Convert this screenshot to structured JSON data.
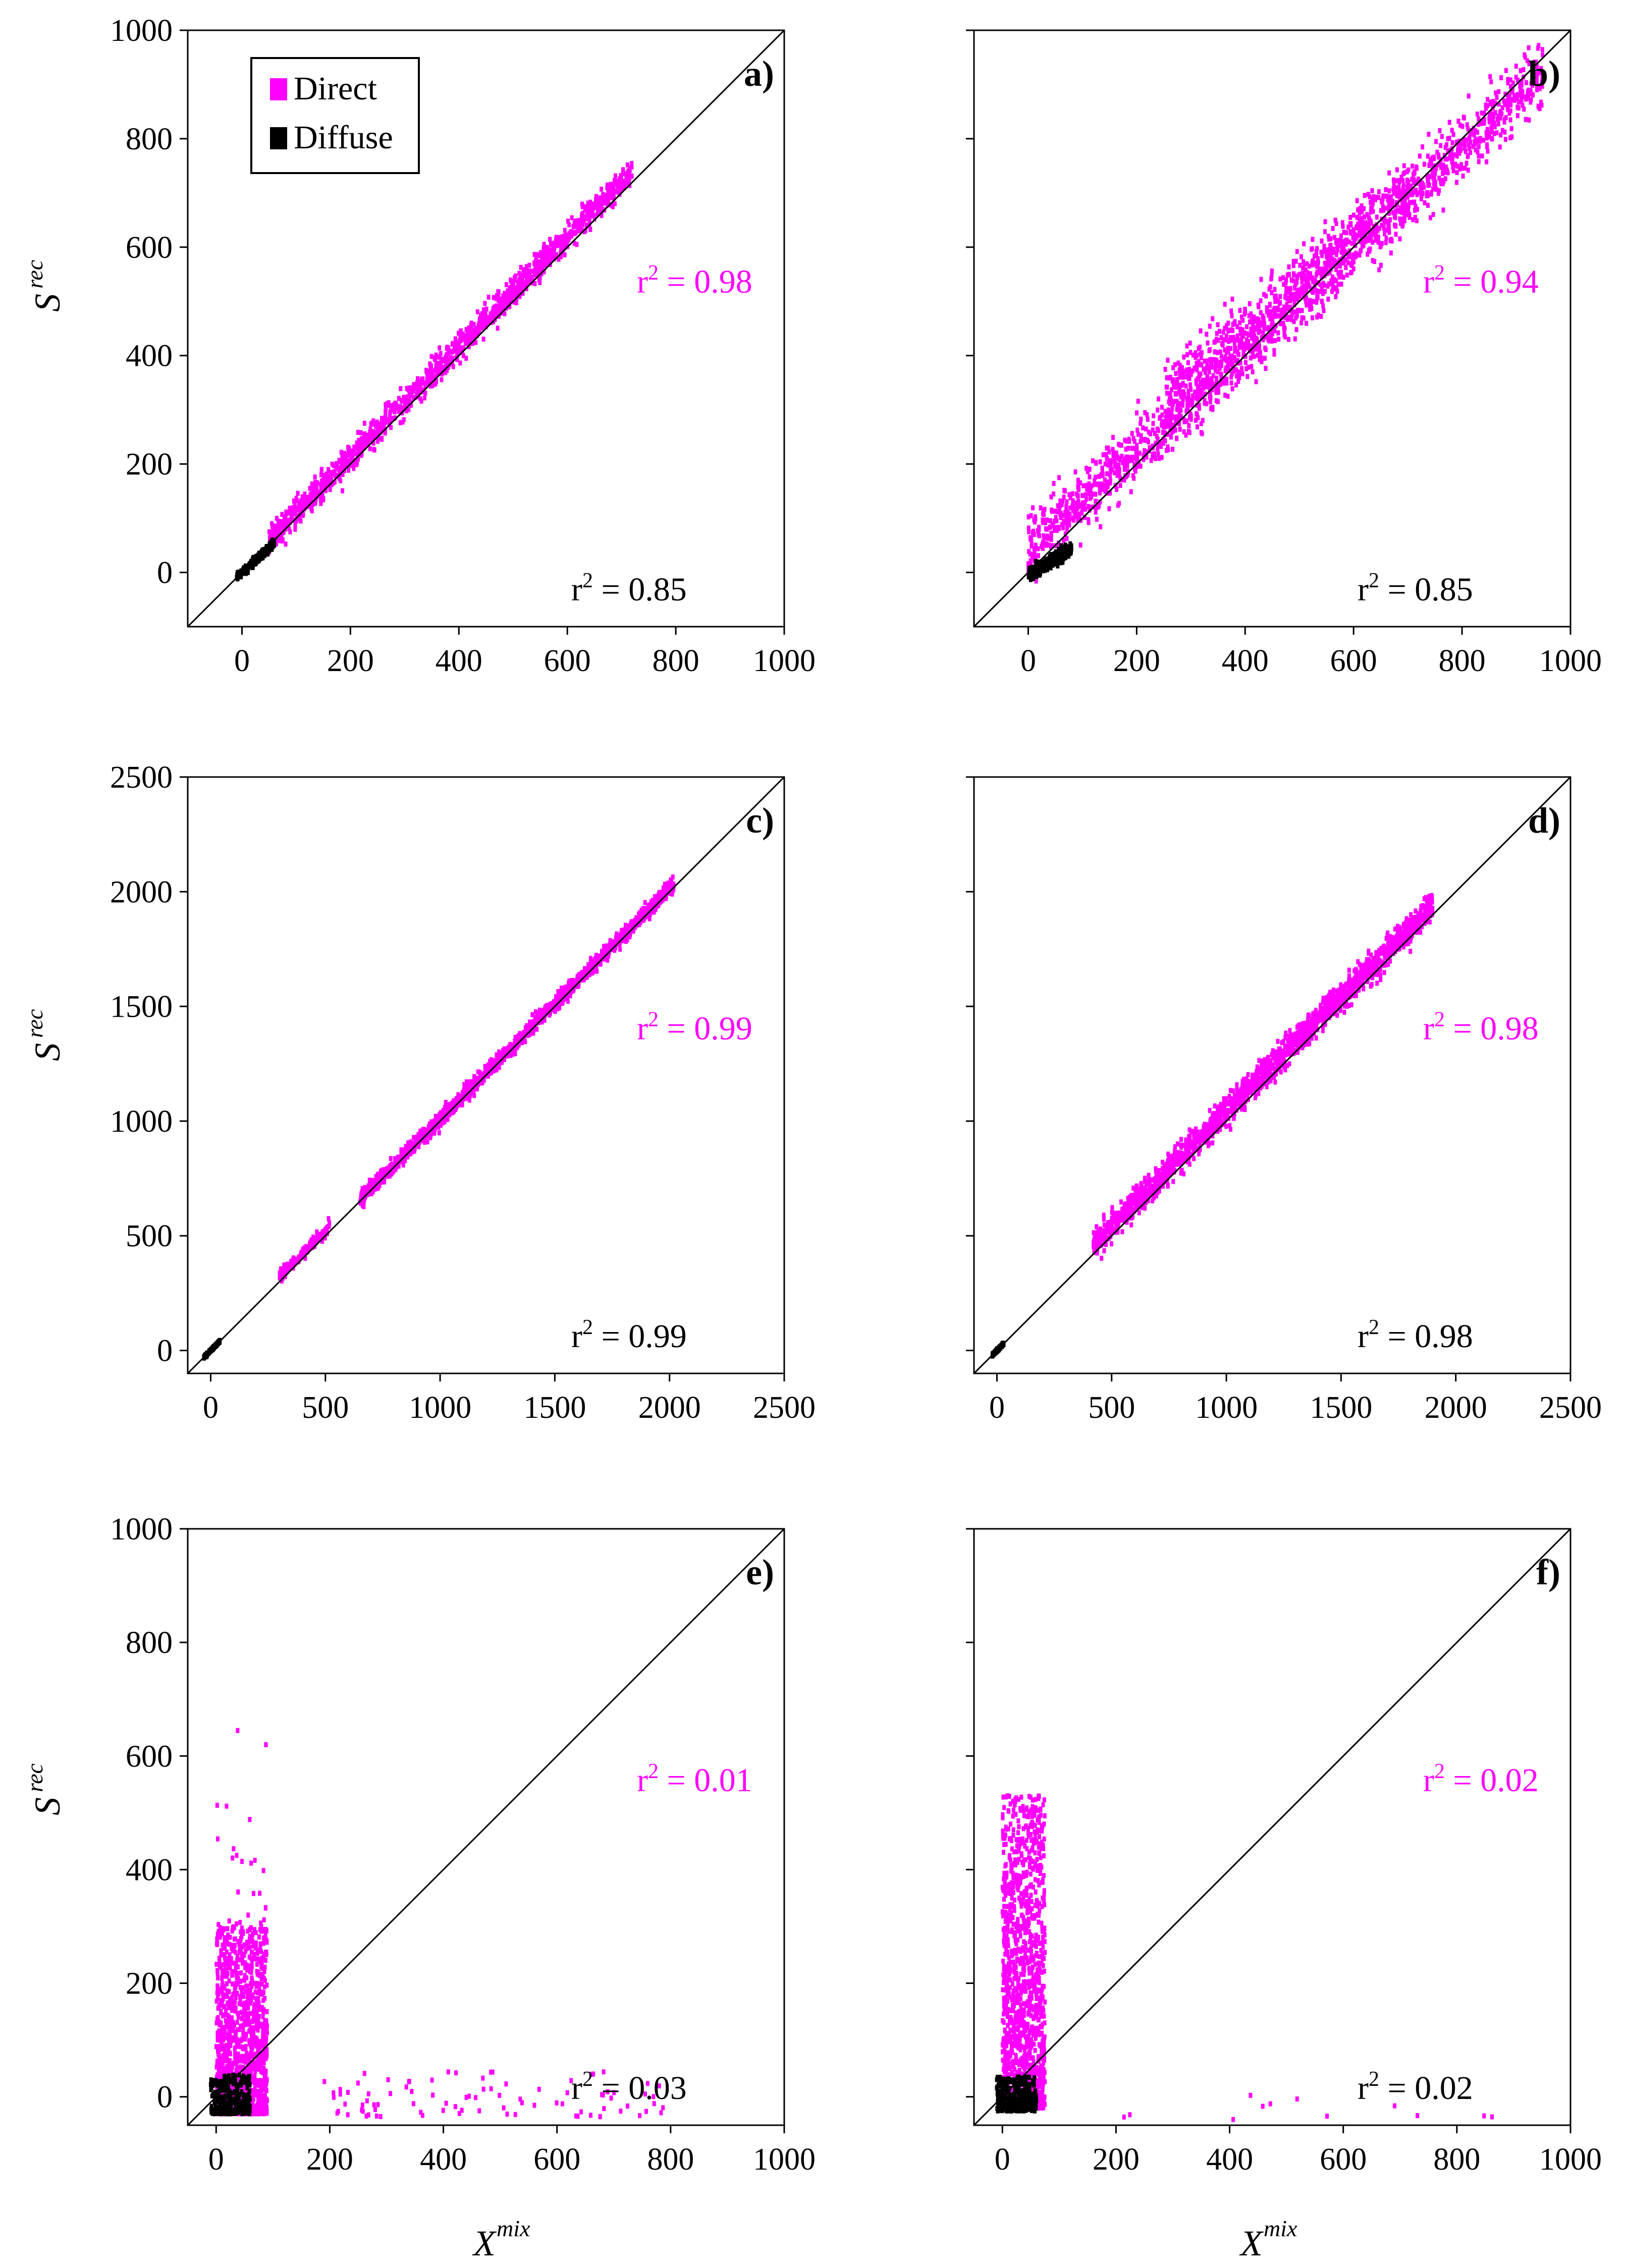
{
  "figure": {
    "colors": {
      "direct": "#ff00ff",
      "diffuse": "#000000",
      "axis": "#000000",
      "background": "#ffffff"
    },
    "legend": {
      "items": [
        {
          "label": "Direct",
          "color": "#ff00ff"
        },
        {
          "label": "Diffuse",
          "color": "#000000"
        }
      ],
      "placement": "top-left of panel a"
    },
    "y_axis_title": {
      "base": "S",
      "sup": "rec"
    },
    "x_axis_title": {
      "base": "X",
      "sup": "mix"
    }
  },
  "chart_data": [
    {
      "type": "scatter",
      "panel": "a)",
      "xlim": [
        -100,
        1000
      ],
      "ylim": [
        -100,
        1000
      ],
      "xticks": [
        0,
        200,
        400,
        600,
        800,
        1000
      ],
      "yticks": [
        0,
        200,
        400,
        600,
        800,
        1000
      ],
      "show_x_tick_labels": true,
      "show_y_tick_labels": true,
      "reference_line": "1:1",
      "series": [
        {
          "name": "Direct",
          "r2_label": "0.98",
          "r2_pos": [
            890,
            520
          ],
          "clouds": [
            {
              "x_range": [
                50,
                720
              ],
              "a": 8,
              "b": 1.02,
              "spread": 22,
              "n": 1400
            }
          ]
        },
        {
          "name": "Diffuse",
          "r2_label": "0.85",
          "r2_pos": [
            760,
            1130
          ],
          "clouds": [
            {
              "x_range": [
                -10,
                60
              ],
              "a": 0,
              "b": 0.9,
              "spread": 6,
              "n": 300
            }
          ]
        }
      ]
    },
    {
      "type": "scatter",
      "panel": "b)",
      "xlim": [
        -100,
        1000
      ],
      "ylim": [
        -100,
        1000
      ],
      "xticks": [
        0,
        200,
        400,
        600,
        800,
        1000
      ],
      "yticks": [
        0,
        200,
        400,
        600,
        800,
        1000
      ],
      "show_x_tick_labels": true,
      "show_y_tick_labels": false,
      "reference_line": "1:1",
      "series": [
        {
          "name": "Direct",
          "r2_label": "0.94",
          "r2_pos": [
            890,
            520
          ],
          "clouds": [
            {
              "x_range": [
                0,
                950
              ],
              "a": 40,
              "b": 0.93,
              "spread": 50,
              "n": 1800
            },
            {
              "x_range": [
                250,
                700
              ],
              "a": 120,
              "b": 0.85,
              "spread": 45,
              "n": 400
            }
          ]
        },
        {
          "name": "Diffuse",
          "r2_label": "0.85",
          "r2_pos": [
            760,
            1130
          ],
          "clouds": [
            {
              "x_range": [
                0,
                80
              ],
              "a": -5,
              "b": 0.6,
              "spread": 10,
              "n": 400
            }
          ]
        }
      ]
    },
    {
      "type": "scatter",
      "panel": "c)",
      "xlim": [
        -100,
        2500
      ],
      "ylim": [
        -100,
        2500
      ],
      "xticks": [
        0,
        500,
        1000,
        1500,
        2000,
        2500
      ],
      "yticks": [
        0,
        500,
        1000,
        1500,
        2000,
        2500
      ],
      "show_x_tick_labels": true,
      "show_y_tick_labels": true,
      "reference_line": "1:1",
      "series": [
        {
          "name": "Direct",
          "r2_label": "0.99",
          "r2_pos": [
            890,
            520
          ],
          "clouds": [
            {
              "x_range": [
                300,
                520
              ],
              "a": 20,
              "b": 1.0,
              "spread": 25,
              "n": 150
            },
            {
              "x_range": [
                650,
                2020
              ],
              "a": 10,
              "b": 1.0,
              "spread": 28,
              "n": 1600
            }
          ]
        },
        {
          "name": "Diffuse",
          "r2_label": "0.99",
          "r2_pos": [
            760,
            1130
          ],
          "clouds": [
            {
              "x_range": [
                -30,
                40
              ],
              "a": 0,
              "b": 1.0,
              "spread": 5,
              "n": 150
            }
          ]
        }
      ]
    },
    {
      "type": "scatter",
      "panel": "d)",
      "xlim": [
        -100,
        2500
      ],
      "ylim": [
        -100,
        2500
      ],
      "xticks": [
        0,
        500,
        1000,
        1500,
        2000,
        2500
      ],
      "yticks": [
        0,
        500,
        1000,
        1500,
        2000,
        2500
      ],
      "show_x_tick_labels": true,
      "show_y_tick_labels": false,
      "reference_line": "1:1",
      "series": [
        {
          "name": "Direct",
          "r2_label": "0.98",
          "r2_pos": [
            890,
            520
          ],
          "clouds": [
            {
              "x_range": [
                420,
                1900
              ],
              "a": 40,
              "b": 1.0,
              "spread": 55,
              "n": 1800
            }
          ]
        },
        {
          "name": "Diffuse",
          "r2_label": "0.98",
          "r2_pos": [
            760,
            1130
          ],
          "clouds": [
            {
              "x_range": [
                -20,
                30
              ],
              "a": 0,
              "b": 1.0,
              "spread": 5,
              "n": 120
            }
          ]
        }
      ]
    },
    {
      "type": "scatter",
      "panel": "e)",
      "xlim": [
        -50,
        1000
      ],
      "ylim": [
        -50,
        1000
      ],
      "xticks": [
        0,
        200,
        400,
        600,
        800,
        1000
      ],
      "yticks": [
        0,
        200,
        400,
        600,
        800,
        1000
      ],
      "show_x_tick_labels": true,
      "show_y_tick_labels": true,
      "reference_line": "1:1",
      "series": [
        {
          "name": "Direct",
          "r2_label": "0.01",
          "r2_pos": [
            890,
            520
          ],
          "clouds": [
            {
              "x_range": [
                0,
                90
              ],
              "y_range": [
                -30,
                300
              ],
              "n": 1300
            },
            {
              "x_range": [
                0,
                90
              ],
              "y_range": [
                300,
                660
              ],
              "n": 25
            },
            {
              "x_range": [
                180,
                790
              ],
              "y_range": [
                -35,
                45
              ],
              "n": 90
            }
          ]
        },
        {
          "name": "Diffuse",
          "r2_label": "0.03",
          "r2_pos": [
            760,
            1130
          ],
          "clouds": [
            {
              "x_range": [
                -10,
                60
              ],
              "y_range": [
                -30,
                40
              ],
              "n": 300
            }
          ]
        }
      ]
    },
    {
      "type": "scatter",
      "panel": "f)",
      "xlim": [
        -50,
        1000
      ],
      "ylim": [
        -50,
        1000
      ],
      "xticks": [
        0,
        200,
        400,
        600,
        800,
        1000
      ],
      "yticks": [
        0,
        200,
        400,
        600,
        800,
        1000
      ],
      "show_x_tick_labels": true,
      "show_y_tick_labels": false,
      "reference_line": "1:1",
      "series": [
        {
          "name": "Direct",
          "r2_label": "0.02",
          "r2_pos": [
            890,
            520
          ],
          "clouds": [
            {
              "x_range": [
                0,
                75
              ],
              "y_range": [
                -20,
                530
              ],
              "n": 1300
            },
            {
              "x_range": [
                200,
                900
              ],
              "y_range": [
                -40,
                10
              ],
              "n": 12
            }
          ]
        },
        {
          "name": "Diffuse",
          "r2_label": "0.02",
          "r2_pos": [
            760,
            1130
          ],
          "clouds": [
            {
              "x_range": [
                -10,
                60
              ],
              "y_range": [
                -25,
                35
              ],
              "n": 300
            }
          ]
        }
      ]
    }
  ]
}
